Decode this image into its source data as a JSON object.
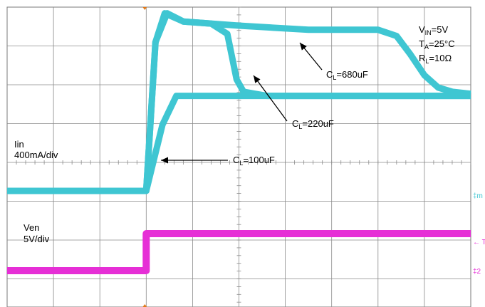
{
  "chart_data": {
    "type": "line",
    "title": "",
    "grid": true,
    "colors": {
      "current": "#3fc6d2",
      "enable": "#e62fd6",
      "grid": "#8a8a8a",
      "background": "#ffffff"
    },
    "channels": [
      {
        "name": "Iin",
        "scale": "400mA/div",
        "label_line1": "Iin",
        "label_line2": "400mA/div"
      },
      {
        "name": "Ven",
        "scale": "5V/div",
        "label_line1": "Ven",
        "label_line2": "5V/div"
      }
    ],
    "conditions": {
      "vin": {
        "main": "V",
        "sub": "IN",
        "value": "=5V"
      },
      "ta": {
        "main": "T",
        "sub": "A",
        "value": "=25°C"
      },
      "rl": {
        "main": "R",
        "sub": "L",
        "value": "=10Ω"
      }
    },
    "series": [
      {
        "name": "C_L=100uF",
        "label": {
          "main": "C",
          "sub": "L",
          "value": "=100uF"
        },
        "color": "#3fc6d2",
        "x_div": [
          0,
          3.0,
          3.35,
          3.65,
          4.2,
          10
        ],
        "y_div": [
          0,
          0,
          1.6,
          2.3,
          2.3,
          2.3
        ]
      },
      {
        "name": "C_L=220uF",
        "label": {
          "main": "C",
          "sub": "L",
          "value": "=220uF"
        },
        "color": "#3fc6d2",
        "x_div": [
          0,
          3.0,
          3.2,
          3.45,
          3.8,
          4.4,
          4.75,
          4.95,
          5.1,
          5.6,
          10
        ],
        "y_div": [
          0,
          0,
          3.6,
          4.3,
          4.1,
          4.05,
          3.8,
          2.7,
          2.4,
          2.3,
          2.3
        ]
      },
      {
        "name": "C_L=680uF",
        "label": {
          "main": "C",
          "sub": "L",
          "value": "=680uF"
        },
        "color": "#3fc6d2",
        "x_div": [
          0,
          3.0,
          3.2,
          3.4,
          3.8,
          5.0,
          6.5,
          8.0,
          8.4,
          8.7,
          9.0,
          9.3,
          9.6,
          10
        ],
        "y_div": [
          0,
          0,
          3.6,
          4.3,
          4.1,
          4.0,
          3.9,
          3.9,
          3.75,
          3.3,
          2.8,
          2.5,
          2.4,
          2.35
        ]
      },
      {
        "name": "Ven",
        "color": "#e62fd6",
        "x_div": [
          0,
          3.0,
          3.0,
          10
        ],
        "y_div": [
          0,
          0,
          1.0,
          1.0
        ]
      }
    ],
    "axis": {
      "x_divisions": 10,
      "y_divisions": 8
    },
    "right_markers": {
      "top": "‡m",
      "mid": "← T",
      "bottom": "‡2"
    }
  }
}
